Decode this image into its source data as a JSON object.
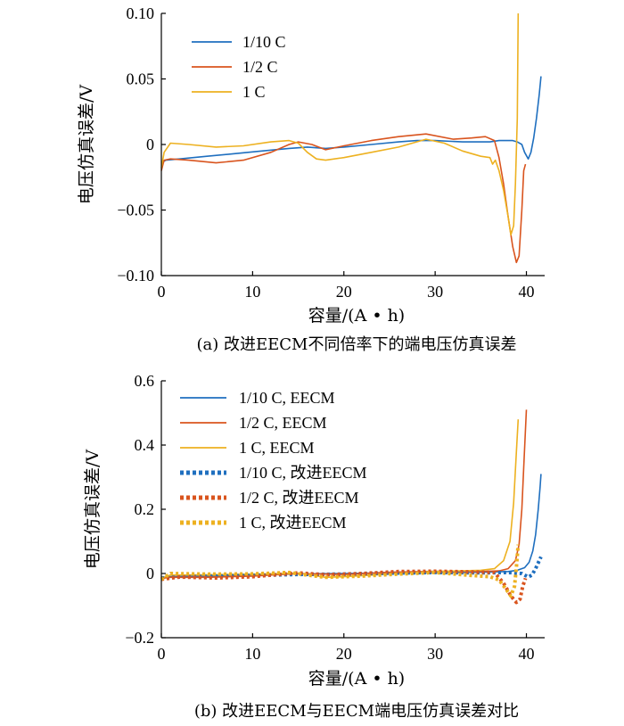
{
  "chart_data": [
    {
      "type": "line",
      "caption": "(a)  改进EECM不同倍率下的端电压仿真误差",
      "xlabel": "容量/(A • h)",
      "ylabel": "电压仿真误差/V",
      "xlim": [
        0,
        42
      ],
      "ylim": [
        -0.1,
        0.1
      ],
      "xticks": [
        "0",
        "10",
        "20",
        "30",
        "40"
      ],
      "xtick_values": [
        0,
        10,
        20,
        30,
        40
      ],
      "yticks": [
        "0.10",
        "0.05",
        "0",
        "−0.05",
        "−0.10"
      ],
      "ytick_values": [
        0.1,
        0.05,
        0,
        -0.05,
        -0.1
      ],
      "grid": false,
      "legend_position": "top-left",
      "series": [
        {
          "name": "1/10 C",
          "color": "#1f6fbf",
          "style": "solid",
          "x": [
            0,
            0.5,
            2,
            5,
            8,
            11,
            14,
            16,
            18,
            20,
            23,
            26,
            28,
            30,
            33,
            35,
            36,
            37,
            38,
            38.5,
            39,
            39.5,
            39.8,
            40.2,
            40.5,
            40.8,
            41.1,
            41.4,
            41.6
          ],
          "y": [
            -0.014,
            -0.012,
            -0.011,
            -0.009,
            -0.007,
            -0.005,
            -0.003,
            -0.002,
            -0.003,
            -0.002,
            0.0,
            0.002,
            0.003,
            0.003,
            0.002,
            0.002,
            0.002,
            0.003,
            0.003,
            0.003,
            0.002,
            0.0,
            -0.006,
            -0.011,
            -0.006,
            0.005,
            0.02,
            0.038,
            0.052
          ]
        },
        {
          "name": "1/2 C",
          "color": "#d9541e",
          "style": "solid",
          "x": [
            0,
            0.3,
            1,
            3,
            6,
            9,
            12,
            14,
            15,
            16.5,
            18,
            20,
            23,
            26,
            29,
            32,
            34,
            35.5,
            36.5,
            37,
            37.5,
            38,
            38.5,
            38.9,
            39.2,
            39.5,
            39.7,
            39.9
          ],
          "y": [
            -0.02,
            -0.012,
            -0.011,
            -0.012,
            -0.014,
            -0.012,
            -0.006,
            0.0,
            0.002,
            0.0,
            -0.004,
            -0.001,
            0.003,
            0.006,
            0.008,
            0.004,
            0.005,
            0.006,
            0.003,
            -0.01,
            -0.03,
            -0.055,
            -0.078,
            -0.09,
            -0.085,
            -0.05,
            -0.02,
            -0.015
          ]
        },
        {
          "name": "1 C",
          "color": "#edb120",
          "style": "solid",
          "x": [
            0,
            0.3,
            1,
            3,
            6,
            9,
            12,
            14,
            15,
            16,
            17,
            18,
            20,
            23,
            26,
            29,
            31,
            33,
            35,
            36,
            36.3,
            36.6,
            37,
            37.5,
            38,
            38.3,
            38.6,
            38.8,
            39,
            39.1
          ],
          "y": [
            -0.018,
            -0.006,
            0.001,
            0.0,
            -0.002,
            -0.001,
            0.002,
            0.003,
            0.001,
            -0.006,
            -0.011,
            -0.012,
            -0.01,
            -0.006,
            -0.002,
            0.004,
            0.001,
            -0.005,
            -0.009,
            -0.01,
            -0.015,
            -0.012,
            -0.02,
            -0.035,
            -0.055,
            -0.069,
            -0.062,
            -0.03,
            0.02,
            0.1
          ]
        }
      ]
    },
    {
      "type": "line",
      "caption": "(b)  改进EECM与EECM端电压仿真误差对比",
      "xlabel": "容量/(A • h)",
      "ylabel": "电压仿真误差/V",
      "xlim": [
        0,
        42
      ],
      "ylim": [
        -0.2,
        0.6
      ],
      "xticks": [
        "0",
        "10",
        "20",
        "30",
        "40"
      ],
      "xtick_values": [
        0,
        10,
        20,
        30,
        40
      ],
      "yticks": [
        "0.6",
        "0.4",
        "0.2",
        "0",
        "−0.2"
      ],
      "ytick_values": [
        0.6,
        0.4,
        0.2,
        0,
        -0.2
      ],
      "grid": false,
      "legend_position": "top-left",
      "series": [
        {
          "name": "1/10 C, EECM",
          "color": "#1f6fbf",
          "style": "solid",
          "x": [
            0,
            1,
            5,
            10,
            15,
            20,
            25,
            30,
            35,
            38,
            39,
            39.8,
            40.3,
            40.7,
            41.0,
            41.3,
            41.5,
            41.6
          ],
          "y": [
            -0.012,
            -0.01,
            -0.008,
            -0.005,
            -0.001,
            0.0,
            0.002,
            0.003,
            0.004,
            0.006,
            0.01,
            0.018,
            0.035,
            0.07,
            0.12,
            0.2,
            0.27,
            0.31
          ]
        },
        {
          "name": "1/2 C, EECM",
          "color": "#d9541e",
          "style": "solid",
          "x": [
            0,
            1,
            5,
            10,
            15,
            20,
            25,
            30,
            35,
            37,
            38,
            38.8,
            39.2,
            39.5,
            39.7,
            39.9,
            40.0
          ],
          "y": [
            -0.015,
            -0.012,
            -0.012,
            -0.008,
            0.0,
            -0.003,
            0.004,
            0.007,
            0.006,
            0.008,
            0.015,
            0.04,
            0.09,
            0.2,
            0.33,
            0.45,
            0.51
          ]
        },
        {
          "name": "1 C, EECM",
          "color": "#edb120",
          "style": "solid",
          "x": [
            0,
            1,
            5,
            10,
            15,
            18,
            20,
            25,
            30,
            35,
            36.5,
            37.5,
            38.2,
            38.6,
            38.9,
            39.1
          ],
          "y": [
            -0.014,
            -0.005,
            -0.004,
            -0.002,
            0.001,
            -0.012,
            -0.01,
            -0.002,
            0.006,
            0.01,
            0.015,
            0.04,
            0.1,
            0.22,
            0.38,
            0.48
          ]
        },
        {
          "name": "1/10 C, 改进EECM",
          "color": "#1f6fbf",
          "style": "dotted",
          "x": [
            0,
            2,
            5,
            10,
            15,
            20,
            25,
            30,
            35,
            38,
            39.5,
            40.2,
            40.6,
            41.0,
            41.4,
            41.6
          ],
          "y": [
            -0.014,
            -0.011,
            -0.009,
            -0.006,
            -0.003,
            -0.002,
            0.001,
            0.003,
            0.002,
            0.003,
            0.0,
            -0.011,
            -0.005,
            0.015,
            0.04,
            0.052
          ]
        },
        {
          "name": "1/2 C, 改进EECM",
          "color": "#d9541e",
          "style": "dotted",
          "x": [
            0,
            2,
            6,
            10,
            15,
            18,
            22,
            26,
            30,
            34,
            36.5,
            37.5,
            38.3,
            38.9,
            39.3,
            39.6,
            39.9
          ],
          "y": [
            -0.018,
            -0.011,
            -0.014,
            -0.01,
            0.002,
            -0.004,
            0.0,
            0.006,
            0.007,
            0.005,
            0.003,
            -0.03,
            -0.07,
            -0.09,
            -0.08,
            -0.04,
            -0.015
          ]
        },
        {
          "name": "1 C, 改进EECM",
          "color": "#edb120",
          "style": "dotted",
          "x": [
            0,
            1,
            5,
            10,
            14,
            16,
            18,
            22,
            26,
            30,
            34,
            36,
            37,
            37.8,
            38.3,
            38.7,
            38.9,
            39.1
          ],
          "y": [
            -0.018,
            0.0,
            -0.002,
            -0.001,
            0.003,
            -0.005,
            -0.012,
            -0.008,
            -0.002,
            0.003,
            -0.006,
            -0.01,
            -0.02,
            -0.05,
            -0.07,
            -0.04,
            0.02,
            0.09
          ]
        }
      ]
    }
  ]
}
